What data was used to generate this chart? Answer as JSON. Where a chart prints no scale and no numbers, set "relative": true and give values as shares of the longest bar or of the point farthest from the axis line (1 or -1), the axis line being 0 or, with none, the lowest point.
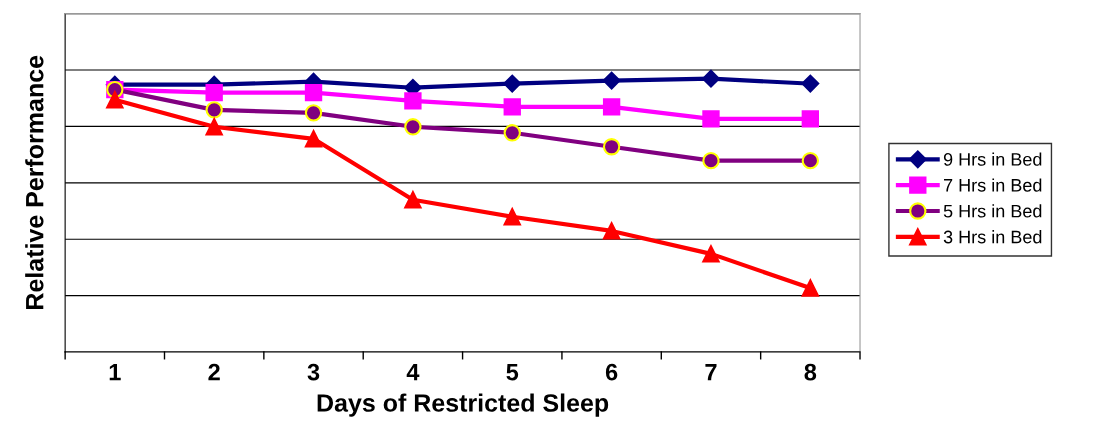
{
  "chart_data": {
    "type": "line",
    "relative": true,
    "xlabel": "Days of Restricted Sleep",
    "ylabel": "Relative Performance",
    "categories": [
      "1",
      "2",
      "3",
      "4",
      "5",
      "6",
      "7",
      "8"
    ],
    "grid": "y",
    "legend": "right",
    "line_style": "solid",
    "series": [
      {
        "name": "9 Hrs in Bed",
        "color": "#000080",
        "marker": "diamond",
        "values": [
          0.978,
          0.978,
          0.989,
          0.967,
          0.982,
          0.993,
          1,
          0.982
        ]
      },
      {
        "name": "7 Hrs in Bed",
        "color": "#ff00ff",
        "marker": "square",
        "values": [
          0.96,
          0.949,
          0.949,
          0.919,
          0.897,
          0.897,
          0.853,
          0.853
        ]
      },
      {
        "name": "5 Hrs in Bed",
        "color": "#800080",
        "marker": "circle",
        "values": [
          0.96,
          0.886,
          0.875,
          0.824,
          0.802,
          0.751,
          0.7,
          0.7
        ]
      },
      {
        "name": "3 Hrs in Bed",
        "color": "#ff0000",
        "marker": "triangle",
        "values": [
          0.923,
          0.824,
          0.78,
          0.557,
          0.495,
          0.443,
          0.359,
          0.234
        ]
      }
    ]
  }
}
